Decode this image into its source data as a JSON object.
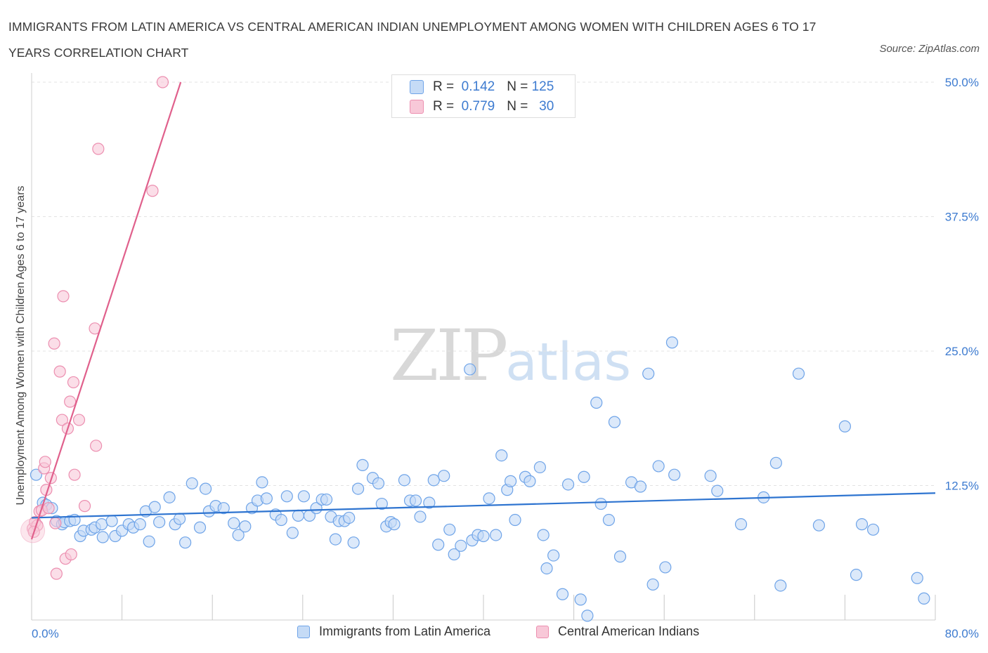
{
  "title": "IMMIGRANTS FROM LATIN AMERICA VS CENTRAL AMERICAN INDIAN UNEMPLOYMENT AMONG WOMEN WITH CHILDREN AGES 6 TO 17 YEARS CORRELATION CHART",
  "source": "Source: ZipAtlas.com",
  "watermark": {
    "zip": "ZIP",
    "atlas": "atlas"
  },
  "colors": {
    "blue": "#6fa4e8",
    "blue_fill": "#c5dbf6",
    "blue_line": "#2e74d0",
    "pink": "#ec8fb0",
    "pink_fill": "#f8c8d8",
    "pink_line": "#e0608c",
    "axis_text": "#3d7bd0",
    "grid": "#e3e3e3"
  },
  "stats": [
    {
      "r_label": "R =",
      "r_value": "0.142",
      "n_label": "N =",
      "n_value": "125"
    },
    {
      "r_label": "R =",
      "r_value": "0.779",
      "n_label": "N =",
      "n_value": "30"
    }
  ],
  "chart_data": {
    "type": "scatter",
    "title": "IMMIGRANTS FROM LATIN AMERICA VS CENTRAL AMERICAN INDIAN UNEMPLOYMENT AMONG WOMEN WITH CHILDREN AGES 6 TO 17 YEARS CORRELATION CHART",
    "xlabel": "",
    "ylabel": "Unemployment Among Women with Children Ages 6 to 17 years",
    "xlim": [
      0,
      80
    ],
    "ylim": [
      0,
      50
    ],
    "x_tick_labels": [
      "0.0%",
      "80.0%"
    ],
    "y_ticks": [
      12.5,
      25,
      37.5,
      50
    ],
    "y_tick_labels": [
      "12.5%",
      "25.0%",
      "37.5%",
      "50.0%"
    ],
    "grid": true,
    "legend_position": "bottom",
    "series": [
      {
        "name": "Immigrants from Latin America",
        "color": "#6fa4e8",
        "trend": {
          "x": [
            0,
            80
          ],
          "y": [
            9.5,
            11.8
          ]
        },
        "points": [
          [
            0.4,
            13.5
          ],
          [
            1.0,
            10.9
          ],
          [
            1.3,
            10.7
          ],
          [
            1.8,
            10.4
          ],
          [
            2.2,
            9.2
          ],
          [
            2.7,
            8.9
          ],
          [
            2.9,
            9.1
          ],
          [
            3.4,
            9.2
          ],
          [
            3.8,
            9.3
          ],
          [
            4.3,
            7.8
          ],
          [
            4.6,
            8.3
          ],
          [
            5.3,
            8.4
          ],
          [
            5.6,
            8.6
          ],
          [
            6.2,
            8.9
          ],
          [
            6.3,
            7.7
          ],
          [
            7.1,
            9.2
          ],
          [
            7.4,
            7.8
          ],
          [
            8.0,
            8.3
          ],
          [
            8.6,
            8.9
          ],
          [
            9.0,
            8.6
          ],
          [
            9.6,
            8.9
          ],
          [
            10.1,
            10.1
          ],
          [
            10.4,
            7.3
          ],
          [
            10.9,
            10.5
          ],
          [
            11.3,
            9.1
          ],
          [
            12.2,
            11.4
          ],
          [
            12.7,
            8.9
          ],
          [
            13.1,
            9.4
          ],
          [
            13.6,
            7.2
          ],
          [
            14.2,
            12.7
          ],
          [
            14.9,
            8.6
          ],
          [
            15.4,
            12.2
          ],
          [
            15.7,
            10.1
          ],
          [
            16.3,
            10.6
          ],
          [
            17.0,
            10.4
          ],
          [
            17.9,
            9.0
          ],
          [
            18.3,
            7.9
          ],
          [
            18.9,
            8.7
          ],
          [
            19.5,
            10.4
          ],
          [
            20.0,
            11.1
          ],
          [
            20.4,
            12.8
          ],
          [
            20.8,
            11.3
          ],
          [
            21.6,
            9.8
          ],
          [
            22.1,
            9.3
          ],
          [
            22.6,
            11.5
          ],
          [
            23.1,
            8.1
          ],
          [
            23.6,
            9.7
          ],
          [
            24.1,
            11.5
          ],
          [
            24.6,
            9.7
          ],
          [
            25.2,
            10.4
          ],
          [
            25.7,
            11.2
          ],
          [
            26.1,
            11.2
          ],
          [
            26.5,
            9.6
          ],
          [
            26.9,
            7.5
          ],
          [
            27.2,
            9.2
          ],
          [
            27.7,
            9.2
          ],
          [
            28.1,
            9.5
          ],
          [
            28.5,
            7.2
          ],
          [
            28.9,
            12.2
          ],
          [
            29.3,
            14.4
          ],
          [
            30.2,
            13.2
          ],
          [
            30.7,
            12.7
          ],
          [
            31.0,
            10.8
          ],
          [
            31.4,
            8.7
          ],
          [
            31.8,
            9.1
          ],
          [
            32.1,
            8.9
          ],
          [
            33.0,
            13.0
          ],
          [
            33.5,
            11.1
          ],
          [
            34.0,
            11.1
          ],
          [
            34.4,
            9.6
          ],
          [
            35.2,
            10.9
          ],
          [
            35.6,
            13.0
          ],
          [
            36.0,
            7.0
          ],
          [
            36.5,
            13.4
          ],
          [
            37.0,
            8.4
          ],
          [
            37.4,
            6.1
          ],
          [
            38.0,
            6.9
          ],
          [
            38.8,
            23.3
          ],
          [
            39.0,
            7.4
          ],
          [
            39.5,
            7.9
          ],
          [
            40.0,
            7.8
          ],
          [
            40.5,
            11.3
          ],
          [
            41.1,
            7.9
          ],
          [
            41.6,
            15.3
          ],
          [
            42.1,
            12.1
          ],
          [
            42.4,
            12.9
          ],
          [
            42.8,
            9.3
          ],
          [
            43.7,
            13.3
          ],
          [
            44.1,
            12.9
          ],
          [
            45.0,
            14.2
          ],
          [
            45.3,
            7.9
          ],
          [
            45.6,
            4.8
          ],
          [
            46.2,
            6.0
          ],
          [
            47.0,
            2.4
          ],
          [
            47.5,
            12.6
          ],
          [
            48.6,
            1.9
          ],
          [
            48.9,
            13.3
          ],
          [
            49.2,
            0.4
          ],
          [
            50.0,
            20.2
          ],
          [
            50.4,
            10.8
          ],
          [
            51.1,
            9.3
          ],
          [
            51.6,
            18.4
          ],
          [
            52.1,
            5.9
          ],
          [
            53.1,
            12.8
          ],
          [
            53.9,
            12.4
          ],
          [
            54.6,
            22.9
          ],
          [
            55.0,
            3.3
          ],
          [
            55.5,
            14.3
          ],
          [
            56.1,
            4.9
          ],
          [
            56.7,
            25.8
          ],
          [
            56.9,
            13.5
          ],
          [
            60.1,
            13.4
          ],
          [
            60.7,
            12.0
          ],
          [
            62.8,
            8.9
          ],
          [
            64.8,
            11.4
          ],
          [
            65.9,
            14.6
          ],
          [
            66.3,
            3.2
          ],
          [
            67.9,
            22.9
          ],
          [
            69.7,
            8.8
          ],
          [
            72.0,
            18.0
          ],
          [
            73.0,
            4.2
          ],
          [
            73.5,
            8.9
          ],
          [
            74.5,
            8.4
          ],
          [
            78.4,
            3.9
          ],
          [
            79.0,
            2.0
          ]
        ]
      },
      {
        "name": "Central American Indians",
        "color": "#ec8fb0",
        "trend": {
          "x": [
            0,
            13.2
          ],
          "y": [
            7.5,
            50
          ]
        },
        "points": [
          [
            0.1,
            8.5
          ],
          [
            0.3,
            9.1
          ],
          [
            0.5,
            8.8
          ],
          [
            0.7,
            10.1
          ],
          [
            0.9,
            10.2
          ],
          [
            1.1,
            14.1
          ],
          [
            1.2,
            14.7
          ],
          [
            1.3,
            12.1
          ],
          [
            1.5,
            10.4
          ],
          [
            1.7,
            13.2
          ],
          [
            2.0,
            25.7
          ],
          [
            2.1,
            9.0
          ],
          [
            2.2,
            4.3
          ],
          [
            2.5,
            23.1
          ],
          [
            2.7,
            18.6
          ],
          [
            2.8,
            30.1
          ],
          [
            3.0,
            5.7
          ],
          [
            3.2,
            17.8
          ],
          [
            3.4,
            20.3
          ],
          [
            3.5,
            6.1
          ],
          [
            3.7,
            22.1
          ],
          [
            3.8,
            13.5
          ],
          [
            4.2,
            18.6
          ],
          [
            4.7,
            10.6
          ],
          [
            5.6,
            27.1
          ],
          [
            5.7,
            16.2
          ],
          [
            5.9,
            43.8
          ],
          [
            10.7,
            39.9
          ],
          [
            11.6,
            50.0
          ],
          [
            0.2,
            8.2
          ]
        ]
      }
    ]
  },
  "legend": [
    {
      "label": "Immigrants from Latin America"
    },
    {
      "label": "Central American Indians"
    }
  ]
}
